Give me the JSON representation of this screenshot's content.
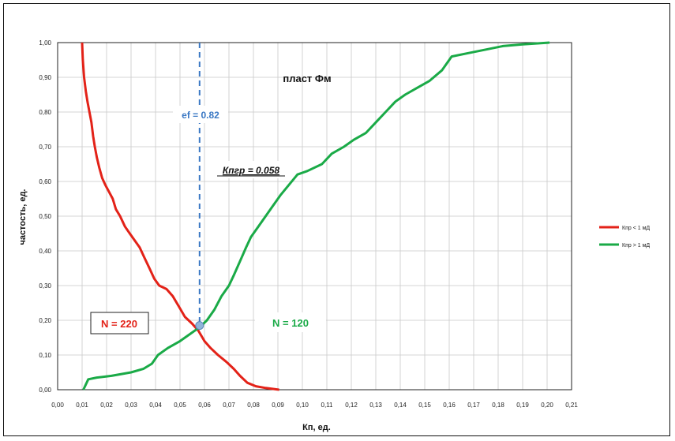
{
  "chart_data": {
    "type": "line",
    "title": "пласт  Фм",
    "xlabel": "Кп,  ед.",
    "ylabel": "частость, ед.",
    "xlim": [
      0,
      0.21
    ],
    "ylim": [
      0,
      1
    ],
    "x_ticks": [
      "0,00",
      "0,01",
      "0,02",
      "0,03",
      "0,04",
      "0,05",
      "0,06",
      "0,07",
      "0,08",
      "0,09",
      "0,10",
      "0,11",
      "0,12",
      "0,13",
      "0,14",
      "0,15",
      "0,16",
      "0,17",
      "0,18",
      "0,19",
      "0,20",
      "0,21"
    ],
    "y_ticks": [
      "0,00",
      "0,10",
      "0,20",
      "0,30",
      "0,40",
      "0,50",
      "0,60",
      "0,70",
      "0,80",
      "0,90",
      "1,00"
    ],
    "grid": true,
    "legend_position": "right",
    "series": [
      {
        "name": "Кпр < 1 мД",
        "color": "#e32218",
        "points": [
          [
            0.01,
            1.0
          ],
          [
            0.0103,
            0.95
          ],
          [
            0.0108,
            0.9
          ],
          [
            0.0115,
            0.86
          ],
          [
            0.0122,
            0.83
          ],
          [
            0.013,
            0.8
          ],
          [
            0.0138,
            0.77
          ],
          [
            0.0145,
            0.73
          ],
          [
            0.0152,
            0.7
          ],
          [
            0.016,
            0.67
          ],
          [
            0.017,
            0.64
          ],
          [
            0.0182,
            0.61
          ],
          [
            0.0195,
            0.59
          ],
          [
            0.021,
            0.57
          ],
          [
            0.0225,
            0.55
          ],
          [
            0.0238,
            0.52
          ],
          [
            0.0255,
            0.5
          ],
          [
            0.0275,
            0.47
          ],
          [
            0.0295,
            0.45
          ],
          [
            0.0315,
            0.43
          ],
          [
            0.0335,
            0.41
          ],
          [
            0.0355,
            0.38
          ],
          [
            0.0375,
            0.35
          ],
          [
            0.0395,
            0.32
          ],
          [
            0.0415,
            0.3
          ],
          [
            0.0445,
            0.29
          ],
          [
            0.047,
            0.27
          ],
          [
            0.0495,
            0.24
          ],
          [
            0.052,
            0.21
          ],
          [
            0.055,
            0.19
          ],
          [
            0.0575,
            0.17
          ],
          [
            0.06,
            0.14
          ],
          [
            0.0625,
            0.12
          ],
          [
            0.0655,
            0.1
          ],
          [
            0.069,
            0.08
          ],
          [
            0.072,
            0.06
          ],
          [
            0.0745,
            0.04
          ],
          [
            0.0775,
            0.02
          ],
          [
            0.081,
            0.01
          ],
          [
            0.085,
            0.005
          ],
          [
            0.0905,
            0.0
          ]
        ]
      },
      {
        "name": "Кпр > 1 мД",
        "color": "#1aaa47",
        "points": [
          [
            0.0105,
            0.0
          ],
          [
            0.0125,
            0.03
          ],
          [
            0.016,
            0.035
          ],
          [
            0.022,
            0.04
          ],
          [
            0.03,
            0.05
          ],
          [
            0.035,
            0.06
          ],
          [
            0.0385,
            0.075
          ],
          [
            0.041,
            0.1
          ],
          [
            0.045,
            0.12
          ],
          [
            0.05,
            0.14
          ],
          [
            0.054,
            0.16
          ],
          [
            0.058,
            0.18
          ],
          [
            0.061,
            0.2
          ],
          [
            0.064,
            0.23
          ],
          [
            0.067,
            0.27
          ],
          [
            0.07,
            0.3
          ],
          [
            0.072,
            0.33
          ],
          [
            0.0745,
            0.37
          ],
          [
            0.077,
            0.41
          ],
          [
            0.079,
            0.44
          ],
          [
            0.082,
            0.47
          ],
          [
            0.085,
            0.5
          ],
          [
            0.088,
            0.53
          ],
          [
            0.091,
            0.56
          ],
          [
            0.0945,
            0.59
          ],
          [
            0.098,
            0.62
          ],
          [
            0.102,
            0.63
          ],
          [
            0.108,
            0.65
          ],
          [
            0.112,
            0.68
          ],
          [
            0.117,
            0.7
          ],
          [
            0.121,
            0.72
          ],
          [
            0.126,
            0.74
          ],
          [
            0.13,
            0.77
          ],
          [
            0.134,
            0.8
          ],
          [
            0.138,
            0.83
          ],
          [
            0.142,
            0.85
          ],
          [
            0.147,
            0.87
          ],
          [
            0.152,
            0.89
          ],
          [
            0.157,
            0.92
          ],
          [
            0.161,
            0.96
          ],
          [
            0.168,
            0.97
          ],
          [
            0.175,
            0.98
          ],
          [
            0.182,
            0.99
          ],
          [
            0.19,
            0.995
          ],
          [
            0.201,
            1.0
          ]
        ]
      }
    ],
    "annotations": {
      "ef_label": "ef = 0.82",
      "ef_x": 0.058,
      "kgr_label": "Кпгр = 0.058",
      "n_left_label": "N = 220",
      "n_right_label": "N = 120",
      "intersection": [
        0.058,
        0.185
      ]
    }
  }
}
